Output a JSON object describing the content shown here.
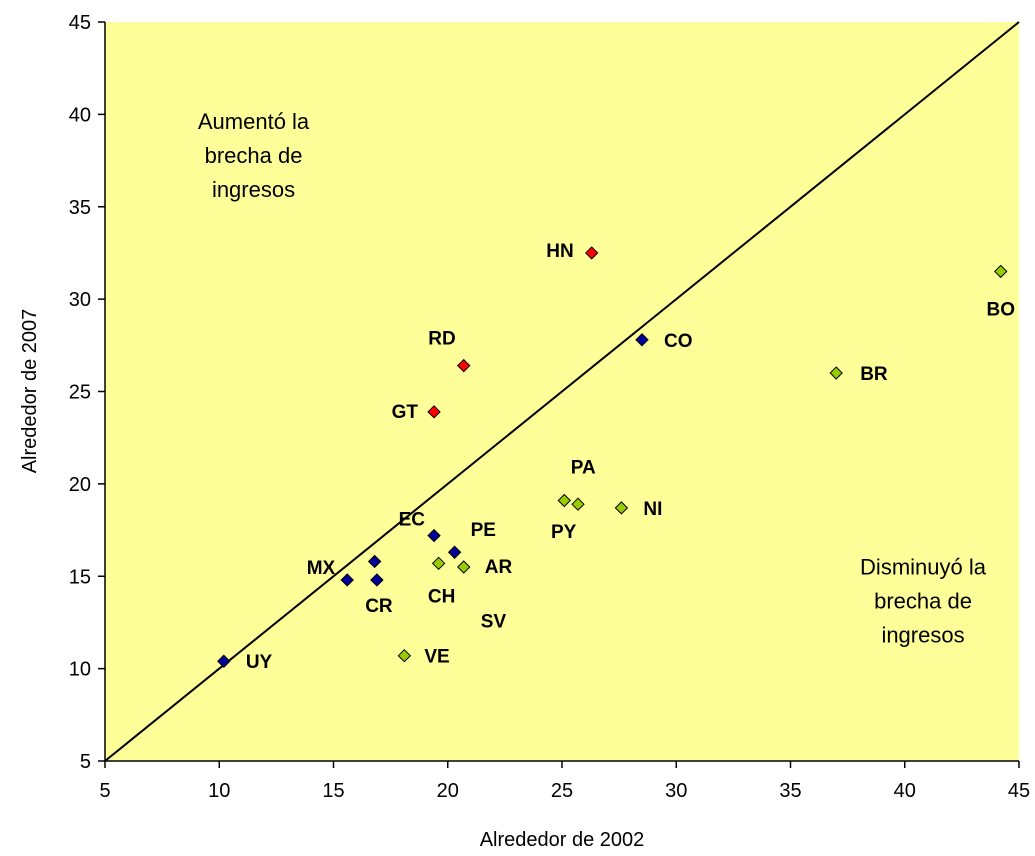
{
  "chart_data": {
    "type": "scatter",
    "xlabel": "Alrededor de 2002",
    "ylabel": "Alrededor de 2007",
    "xlim": [
      5,
      45
    ],
    "ylim": [
      5,
      45
    ],
    "x_ticks": [
      5,
      10,
      15,
      20,
      25,
      30,
      35,
      40,
      45
    ],
    "y_ticks": [
      5,
      10,
      15,
      20,
      25,
      30,
      35,
      40,
      45
    ],
    "grid": false,
    "background_color": "#FFFF99",
    "reference_line": {
      "from": [
        5,
        5
      ],
      "to": [
        45,
        45
      ],
      "color": "#000000"
    },
    "annotations": [
      {
        "lines": [
          "Aumentó la",
          "brecha de",
          "ingresos"
        ],
        "x": 11.5,
        "y": 39.2
      },
      {
        "lines": [
          "Disminuyó la",
          "brecha de",
          "ingresos"
        ],
        "x": 40.8,
        "y": 15.1
      }
    ],
    "series": [
      {
        "color": "#FF0000",
        "points": [
          {
            "label": "HN",
            "x": 26.3,
            "y": 32.5
          },
          {
            "label": "RD",
            "x": 20.7,
            "y": 26.4
          },
          {
            "label": "GT",
            "x": 19.4,
            "y": 23.9
          }
        ]
      },
      {
        "color": "#000099",
        "points": [
          {
            "label": "CO",
            "x": 28.5,
            "y": 27.8
          },
          {
            "label": "EC",
            "x": 19.4,
            "y": 17.2
          },
          {
            "label": "PE",
            "x": 20.3,
            "y": 16.3
          },
          {
            "label": "MX",
            "x": 15.6,
            "y": 14.8
          },
          {
            "label": "CR",
            "x": 16.9,
            "y": 14.8
          },
          {
            "label": "",
            "x": 16.8,
            "y": 15.8
          },
          {
            "label": "UY",
            "x": 10.2,
            "y": 10.4
          }
        ]
      },
      {
        "color": "#99CC00",
        "points": [
          {
            "label": "BO",
            "x": 44.2,
            "y": 31.5
          },
          {
            "label": "BR",
            "x": 37.0,
            "y": 26.0
          },
          {
            "label": "PA",
            "x": 25.1,
            "y": 19.1
          },
          {
            "label": "PY",
            "x": 25.7,
            "y": 18.9
          },
          {
            "label": "NI",
            "x": 27.6,
            "y": 18.7
          },
          {
            "label": "CH",
            "x": 19.6,
            "y": 15.7
          },
          {
            "label": "AR",
            "x": 20.7,
            "y": 15.5
          },
          {
            "label": "SV",
            "x": 22.0,
            "y": 12.6
          },
          {
            "label": "VE",
            "x": 18.1,
            "y": 10.7
          }
        ]
      }
    ]
  }
}
